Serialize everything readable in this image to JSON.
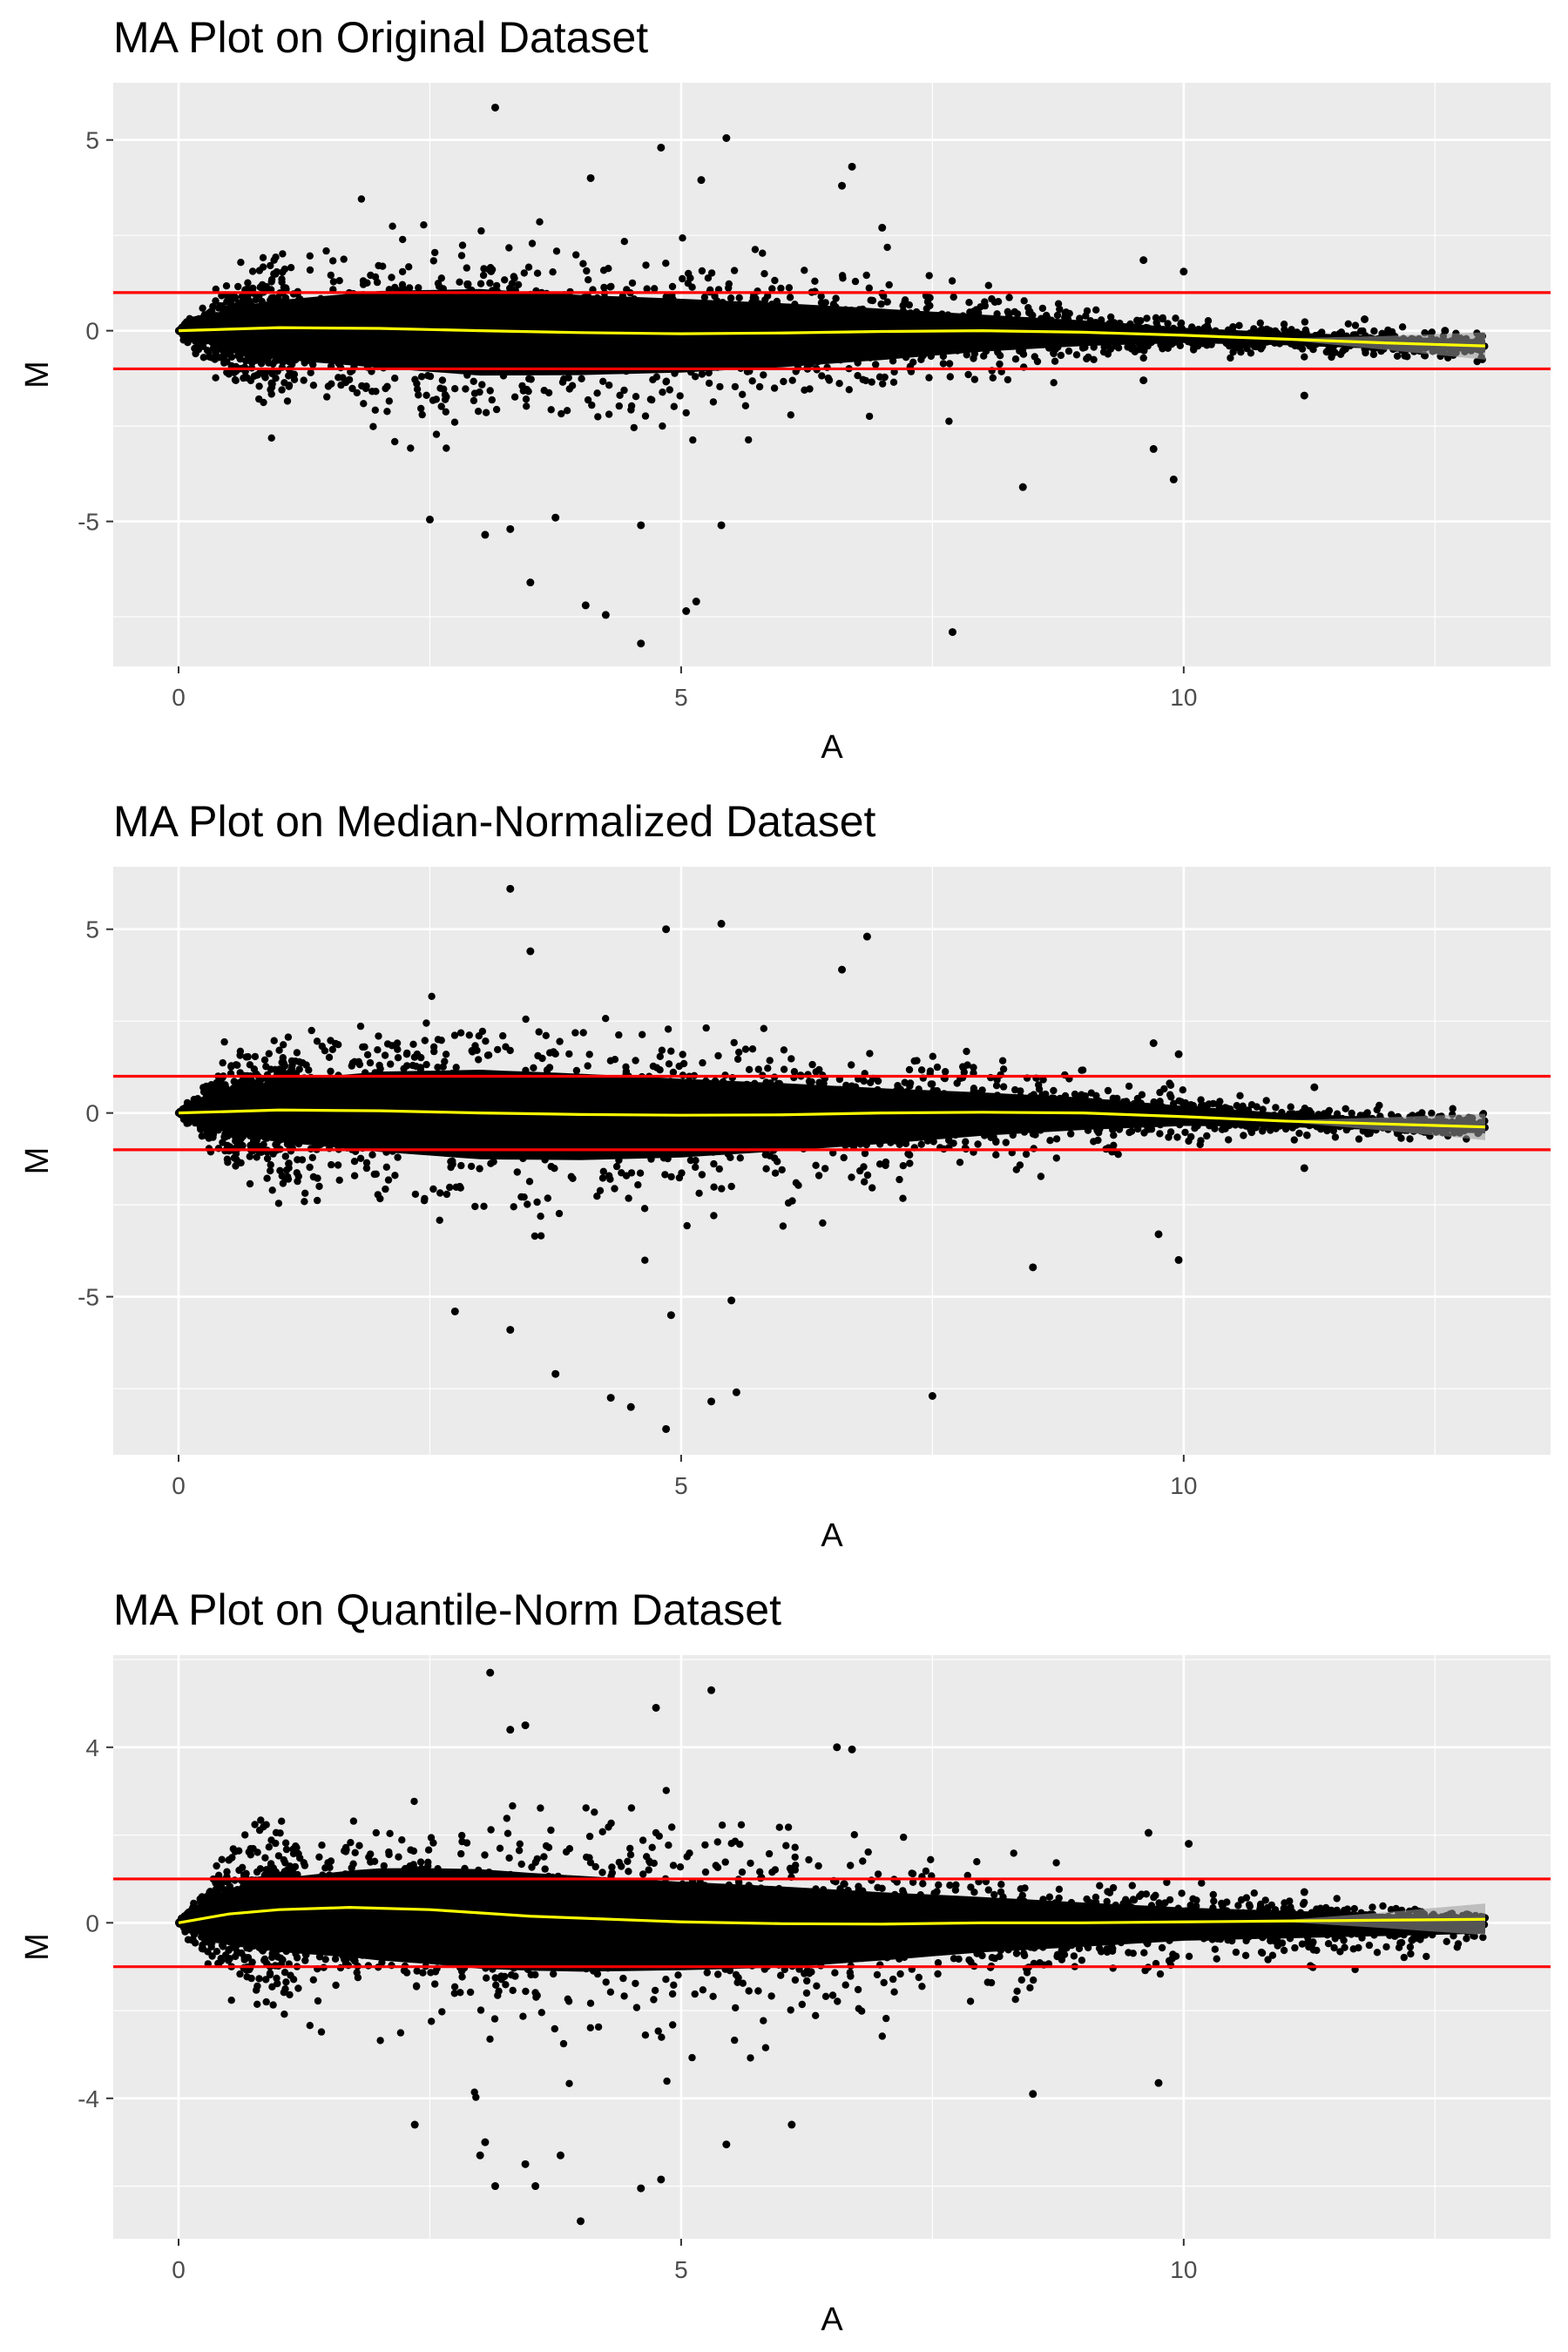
{
  "chart_data": [
    {
      "type": "scatter",
      "title": "MA Plot on Original Dataset",
      "xlabel": "A",
      "ylabel": "M",
      "xlim": [
        -0.65,
        13.65
      ],
      "ylim": [
        -8.8,
        6.5
      ],
      "xticks": [
        0,
        5,
        10
      ],
      "yticks": [
        -5,
        0,
        5
      ],
      "grid": true,
      "hlines": [
        1,
        -1
      ],
      "hline_color": "#ff0000",
      "smooth_color": "#ffff00",
      "point_color": "#000000",
      "panel_color": "#ebebeb",
      "loess": [
        [
          0,
          0
        ],
        [
          1,
          0.08
        ],
        [
          2,
          0.06
        ],
        [
          3,
          0.0
        ],
        [
          4,
          -0.05
        ],
        [
          5,
          -0.08
        ],
        [
          6,
          -0.06
        ],
        [
          7,
          -0.02
        ],
        [
          8,
          0.0
        ],
        [
          9,
          -0.04
        ],
        [
          10,
          -0.12
        ],
        [
          11,
          -0.22
        ],
        [
          12,
          -0.32
        ],
        [
          13,
          -0.4
        ]
      ],
      "spread_upper": [
        [
          0,
          0
        ],
        [
          0.5,
          1.4
        ],
        [
          1,
          1.8
        ],
        [
          2,
          2.4
        ],
        [
          3,
          2.6
        ],
        [
          4,
          2.3
        ],
        [
          5,
          2.1
        ],
        [
          6,
          1.8
        ],
        [
          7,
          1.4
        ],
        [
          8,
          1.0
        ],
        [
          9,
          0.7
        ],
        [
          10,
          0.35
        ],
        [
          11,
          0.2
        ],
        [
          12,
          0.1
        ],
        [
          13,
          0
        ]
      ],
      "spread_lower": [
        [
          0,
          0
        ],
        [
          0.5,
          -1.4
        ],
        [
          1,
          -1.9
        ],
        [
          2,
          -2.4
        ],
        [
          3,
          -2.8
        ],
        [
          4,
          -2.7
        ],
        [
          5,
          -2.5
        ],
        [
          6,
          -2.2
        ],
        [
          7,
          -1.8
        ],
        [
          8,
          -1.3
        ],
        [
          9,
          -0.9
        ],
        [
          10,
          -0.6
        ],
        [
          11,
          -0.6
        ],
        [
          12,
          -0.7
        ],
        [
          13,
          -0.8
        ]
      ],
      "outliers": [
        [
          3.15,
          5.85
        ],
        [
          4.8,
          4.8
        ],
        [
          5.45,
          5.05
        ],
        [
          6.7,
          4.3
        ],
        [
          4.1,
          4.0
        ],
        [
          5.2,
          3.95
        ],
        [
          6.6,
          3.8
        ],
        [
          7.0,
          2.7
        ],
        [
          9.6,
          1.85
        ],
        [
          10.0,
          1.55
        ],
        [
          11.8,
          0.3
        ],
        [
          12.6,
          0.0
        ],
        [
          11.2,
          -1.7
        ],
        [
          9.6,
          -1.3
        ],
        [
          9.7,
          -3.1
        ],
        [
          9.9,
          -3.9
        ],
        [
          8.4,
          -4.1
        ],
        [
          7.7,
          -7.9
        ],
        [
          5.15,
          -7.1
        ],
        [
          5.05,
          -7.35
        ],
        [
          4.6,
          -8.2
        ],
        [
          4.25,
          -7.45
        ],
        [
          4.05,
          -7.2
        ],
        [
          3.5,
          -6.6
        ],
        [
          3.05,
          -5.35
        ],
        [
          2.5,
          -4.95
        ],
        [
          3.3,
          -5.2
        ],
        [
          3.75,
          -4.9
        ],
        [
          4.6,
          -5.1
        ],
        [
          5.4,
          -5.1
        ]
      ]
    },
    {
      "type": "scatter",
      "title": "MA Plot on Median-Normalized Dataset",
      "xlabel": "A",
      "ylabel": "M",
      "xlim": [
        -0.65,
        13.65
      ],
      "ylim": [
        -9.3,
        6.7
      ],
      "xticks": [
        0,
        5,
        10
      ],
      "yticks": [
        -5,
        0,
        5
      ],
      "grid": true,
      "hlines": [
        1,
        -1
      ],
      "hline_color": "#ff0000",
      "smooth_color": "#ffff00",
      "point_color": "#000000",
      "panel_color": "#ebebeb",
      "loess": [
        [
          0,
          0
        ],
        [
          1,
          0.08
        ],
        [
          2,
          0.06
        ],
        [
          3,
          0.0
        ],
        [
          4,
          -0.04
        ],
        [
          5,
          -0.06
        ],
        [
          6,
          -0.05
        ],
        [
          7,
          0.0
        ],
        [
          8,
          0.02
        ],
        [
          9,
          0.0
        ],
        [
          10,
          -0.1
        ],
        [
          11,
          -0.22
        ],
        [
          12,
          -0.3
        ],
        [
          13,
          -0.38
        ]
      ],
      "spread_upper": [
        [
          0,
          0
        ],
        [
          0.5,
          1.5
        ],
        [
          1,
          2.0
        ],
        [
          2,
          2.6
        ],
        [
          3,
          2.8
        ],
        [
          4,
          2.6
        ],
        [
          5,
          2.3
        ],
        [
          6,
          2.0
        ],
        [
          7,
          1.6
        ],
        [
          8,
          1.3
        ],
        [
          9,
          1.0
        ],
        [
          10,
          0.6
        ],
        [
          11,
          0.3
        ],
        [
          12,
          0.1
        ],
        [
          13,
          0
        ]
      ],
      "spread_lower": [
        [
          0,
          0
        ],
        [
          0.5,
          -1.4
        ],
        [
          1,
          -2.0
        ],
        [
          2,
          -2.6
        ],
        [
          3,
          -3.0
        ],
        [
          4,
          -3.0
        ],
        [
          5,
          -2.8
        ],
        [
          6,
          -2.4
        ],
        [
          7,
          -2.0
        ],
        [
          8,
          -1.5
        ],
        [
          9,
          -1.1
        ],
        [
          10,
          -0.7
        ],
        [
          11,
          -0.6
        ],
        [
          12,
          -0.7
        ],
        [
          13,
          -0.8
        ]
      ],
      "outliers": [
        [
          3.3,
          6.1
        ],
        [
          3.5,
          4.4
        ],
        [
          4.85,
          5.0
        ],
        [
          5.4,
          5.15
        ],
        [
          6.85,
          4.8
        ],
        [
          6.6,
          3.9
        ],
        [
          9.7,
          1.9
        ],
        [
          9.95,
          1.6
        ],
        [
          11.3,
          0.7
        ],
        [
          12.6,
          -0.5
        ],
        [
          11.2,
          -1.5
        ],
        [
          9.75,
          -3.3
        ],
        [
          9.95,
          -4.0
        ],
        [
          8.5,
          -4.2
        ],
        [
          7.5,
          -7.7
        ],
        [
          5.55,
          -7.6
        ],
        [
          5.3,
          -7.85
        ],
        [
          4.85,
          -8.6
        ],
        [
          4.5,
          -8.0
        ],
        [
          4.3,
          -7.75
        ],
        [
          3.75,
          -7.1
        ],
        [
          3.3,
          -5.9
        ],
        [
          2.75,
          -5.4
        ],
        [
          4.9,
          -5.5
        ],
        [
          5.5,
          -5.1
        ]
      ]
    },
    {
      "type": "scatter",
      "title": "MA Plot on Quantile-Norm Dataset",
      "xlabel": "A",
      "ylabel": "M",
      "xlim": [
        -0.65,
        13.65
      ],
      "ylim": [
        -7.2,
        6.1
      ],
      "xticks": [
        0,
        5,
        10
      ],
      "yticks": [
        -4,
        0,
        4
      ],
      "grid": true,
      "hlines": [
        1,
        -1
      ],
      "hline_color": "#ff0000",
      "smooth_color": "#ffff00",
      "point_color": "#000000",
      "panel_color": "#ebebeb",
      "loess": [
        [
          0,
          0
        ],
        [
          0.5,
          0.2
        ],
        [
          1,
          0.3
        ],
        [
          1.7,
          0.35
        ],
        [
          2.5,
          0.3
        ],
        [
          3.5,
          0.15
        ],
        [
          5,
          0.02
        ],
        [
          6,
          -0.02
        ],
        [
          7,
          -0.03
        ],
        [
          8,
          0.0
        ],
        [
          9,
          0.0
        ],
        [
          10,
          0.02
        ],
        [
          11,
          0.04
        ],
        [
          12,
          0.06
        ],
        [
          13,
          0.08
        ]
      ],
      "spread_upper": [
        [
          0,
          0
        ],
        [
          0.5,
          1.6
        ],
        [
          1,
          2.0
        ],
        [
          2,
          2.5
        ],
        [
          3,
          2.6
        ],
        [
          4,
          2.4
        ],
        [
          5,
          2.2
        ],
        [
          6,
          2.0
        ],
        [
          7,
          1.7
        ],
        [
          8,
          1.4
        ],
        [
          9,
          1.1
        ],
        [
          10,
          0.8
        ],
        [
          11,
          0.6
        ],
        [
          12,
          0.4
        ],
        [
          13,
          0.2
        ]
      ],
      "spread_lower": [
        [
          0,
          0
        ],
        [
          0.5,
          -1.5
        ],
        [
          1,
          -2.0
        ],
        [
          2,
          -2.5
        ],
        [
          3,
          -2.8
        ],
        [
          4,
          -2.8
        ],
        [
          5,
          -2.6
        ],
        [
          6,
          -2.4
        ],
        [
          7,
          -2.0
        ],
        [
          8,
          -1.6
        ],
        [
          9,
          -1.3
        ],
        [
          10,
          -1.0
        ],
        [
          11,
          -0.9
        ],
        [
          12,
          -0.8
        ],
        [
          13,
          -0.7
        ]
      ],
      "outliers": [
        [
          3.1,
          5.7
        ],
        [
          5.3,
          5.3
        ],
        [
          4.75,
          4.9
        ],
        [
          6.55,
          4.0
        ],
        [
          6.7,
          3.95
        ],
        [
          3.3,
          4.4
        ],
        [
          3.45,
          4.5
        ],
        [
          9.65,
          2.05
        ],
        [
          10.05,
          1.8
        ],
        [
          11.2,
          0.7
        ],
        [
          12.3,
          0.3
        ],
        [
          12.75,
          0.1
        ],
        [
          12.1,
          -0.3
        ],
        [
          9.75,
          -3.65
        ],
        [
          8.5,
          -3.9
        ],
        [
          2.35,
          -4.6
        ],
        [
          3.05,
          -5.0
        ],
        [
          3.0,
          -5.3
        ],
        [
          3.15,
          -6.0
        ],
        [
          3.45,
          -5.5
        ],
        [
          3.55,
          -6.0
        ],
        [
          3.8,
          -5.3
        ],
        [
          4.0,
          -6.8
        ],
        [
          4.6,
          -6.05
        ],
        [
          4.8,
          -5.85
        ],
        [
          5.45,
          -5.05
        ],
        [
          6.1,
          -4.6
        ]
      ]
    }
  ]
}
